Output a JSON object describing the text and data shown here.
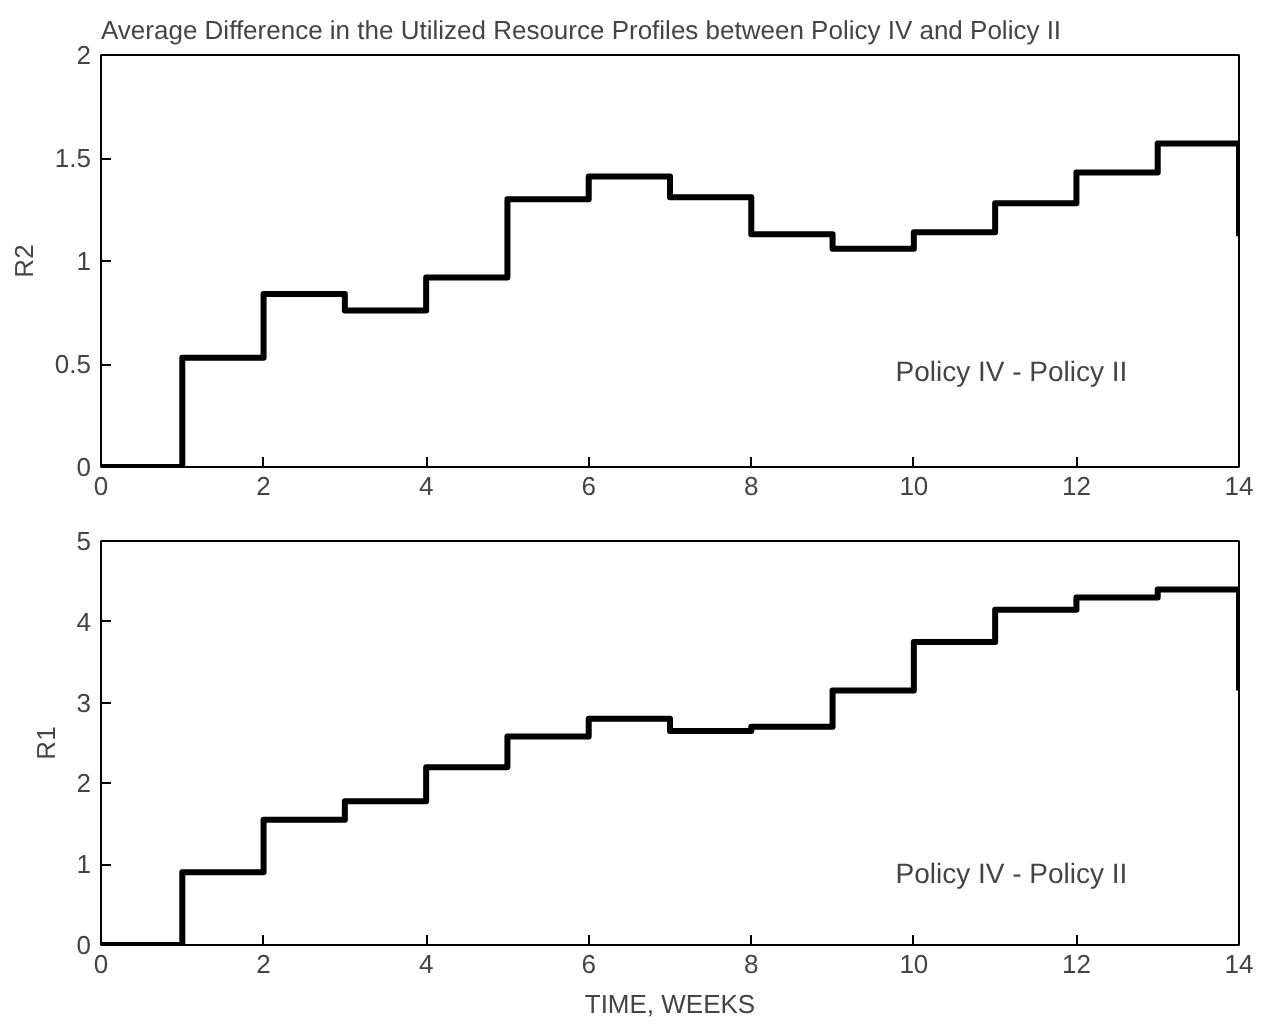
{
  "chart_data": [
    {
      "type": "step",
      "title": "Average Difference in the Utilized Resource Profiles between Policy IV and Policy II",
      "ylabel": "R2",
      "x": [
        0,
        1,
        2,
        3,
        4,
        5,
        6,
        7,
        8,
        9,
        10,
        11,
        12,
        13,
        14
      ],
      "series": [
        {
          "color": "#000000",
          "values": [
            0,
            0.53,
            0.84,
            0.76,
            0.92,
            1.3,
            1.41,
            1.31,
            1.13,
            1.06,
            1.14,
            1.28,
            1.43,
            1.57,
            1.12
          ]
        }
      ],
      "xlim": [
        0,
        14
      ],
      "xticks": [
        0,
        2,
        4,
        6,
        8,
        10,
        12,
        14
      ],
      "ylim": [
        0,
        2
      ],
      "yticks": [
        0,
        0.5,
        1,
        1.5,
        2
      ],
      "grid": false,
      "annotations": [
        "Policy IV - Policy II"
      ]
    },
    {
      "type": "step",
      "ylabel": "R1",
      "xlabel": "TIME, WEEKS",
      "x": [
        0,
        1,
        2,
        3,
        4,
        5,
        6,
        7,
        8,
        9,
        10,
        11,
        12,
        13,
        14
      ],
      "series": [
        {
          "color": "#000000",
          "values": [
            0,
            0.9,
            1.55,
            1.78,
            2.2,
            2.58,
            2.8,
            2.65,
            2.7,
            3.15,
            3.75,
            4.15,
            4.3,
            4.4,
            3.15
          ]
        }
      ],
      "xlim": [
        0,
        14
      ],
      "xticks": [
        0,
        2,
        4,
        6,
        8,
        10,
        12,
        14
      ],
      "ylim": [
        0,
        5
      ],
      "yticks": [
        0,
        1,
        2,
        3,
        4,
        5
      ],
      "grid": false,
      "annotations": [
        "Policy IV - Policy II"
      ]
    }
  ]
}
